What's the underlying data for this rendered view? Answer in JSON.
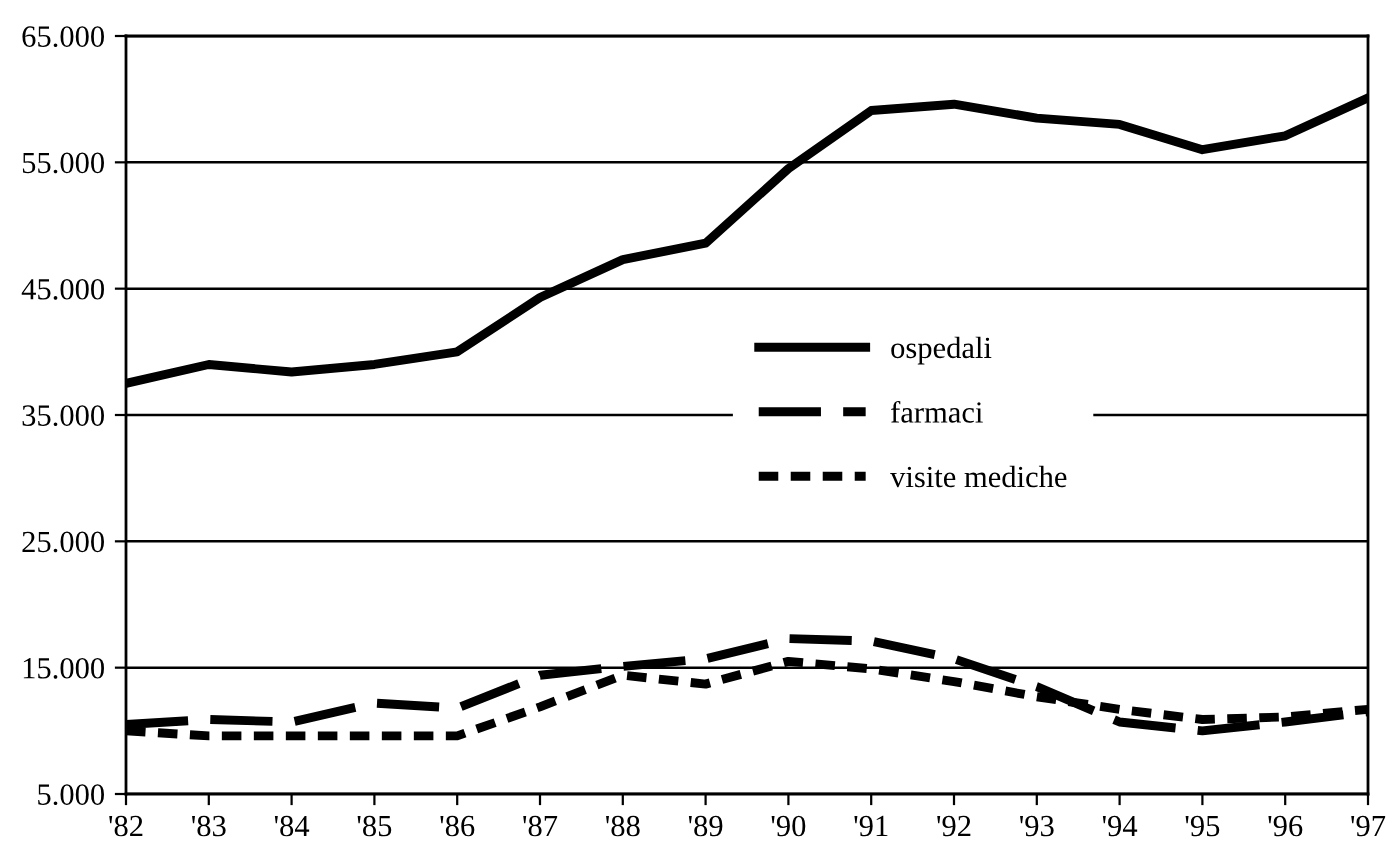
{
  "chart_data": {
    "type": "line",
    "categories": [
      "'82",
      "'83",
      "'84",
      "'85",
      "'86",
      "'87",
      "'88",
      "'89",
      "'90",
      "'91",
      "'92",
      "'93",
      "'94",
      "'95",
      "'96",
      "'97"
    ],
    "series": [
      {
        "name": "ospedali",
        "color": "#000000",
        "line_style": "solid",
        "values": [
          37500,
          39000,
          38400,
          39000,
          40000,
          44300,
          47300,
          48600,
          54500,
          59100,
          59600,
          58500,
          58000,
          56000,
          57100,
          60100
        ]
      },
      {
        "name": "farmaci",
        "color": "#000000",
        "line_style": "dashed",
        "values": [
          10500,
          10900,
          10700,
          12200,
          11800,
          14400,
          15100,
          15700,
          17300,
          17100,
          15700,
          13500,
          10700,
          10000,
          10700,
          11500
        ]
      },
      {
        "name": "visite mediche",
        "color": "#000000",
        "line_style": "dotted",
        "values": [
          10000,
          9600,
          9600,
          9600,
          9600,
          11900,
          14400,
          13700,
          15500,
          14900,
          13900,
          12700,
          11700,
          10900,
          11100,
          11700
        ]
      }
    ],
    "ylim": [
      5000,
      65000
    ],
    "yticks": [
      {
        "value": 5000,
        "label": "5.000"
      },
      {
        "value": 15000,
        "label": "15.000"
      },
      {
        "value": 25000,
        "label": "25.000"
      },
      {
        "value": 35000,
        "label": "35.000"
      },
      {
        "value": 45000,
        "label": "45.000"
      },
      {
        "value": 55000,
        "label": "55.000"
      },
      {
        "value": 65000,
        "label": "65.000"
      }
    ],
    "grid": "y",
    "legend": "center right",
    "marker": "none"
  }
}
